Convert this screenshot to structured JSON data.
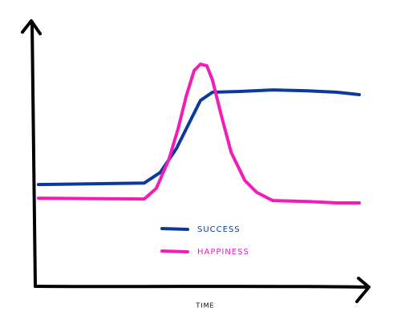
{
  "chart_data": {
    "type": "line",
    "xlabel": "TIME",
    "xlim": [
      0,
      100
    ],
    "ylim": [
      0,
      100
    ],
    "series": [
      {
        "name": "SUCCESS",
        "color": "#0c3a9c",
        "x": [
          0.7,
          32.5,
          37.3,
          42.2,
          45.8,
          49.4,
          53,
          61.4,
          71.1,
          80.7,
          90.4,
          97.1
        ],
        "values": [
          38.8,
          39.4,
          43.4,
          52.6,
          61.8,
          70.9,
          74,
          74.3,
          74.9,
          74.6,
          74,
          73.1
        ]
      },
      {
        "name": "HAPPINESS",
        "color": "#f21cb6",
        "x": [
          0.7,
          32.5,
          36.1,
          39.8,
          42.7,
          45.1,
          47.5,
          49.4,
          51.3,
          53,
          55.4,
          58.6,
          62.7,
          66.3,
          71.1,
          80.7,
          90.4,
          97.1
        ],
        "values": [
          33.6,
          33.3,
          37.3,
          48,
          60.2,
          72.5,
          82.3,
          84.7,
          84.1,
          78.6,
          66.4,
          51.1,
          40.4,
          35.8,
          32.7,
          32.4,
          31.8,
          31.8
        ]
      }
    ]
  }
}
